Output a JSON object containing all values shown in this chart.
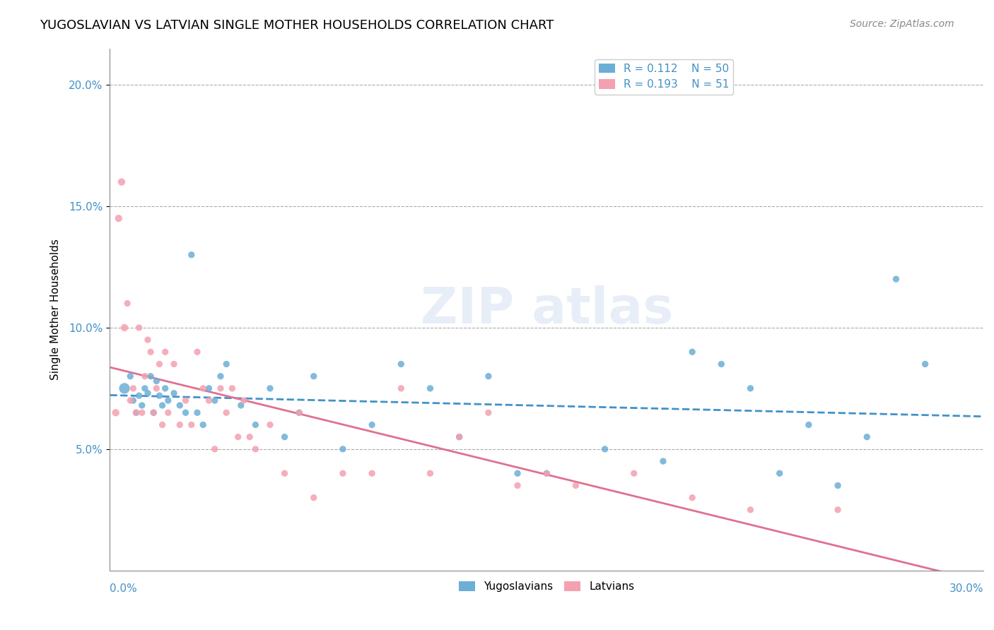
{
  "title": "YUGOSLAVIAN VS LATVIAN SINGLE MOTHER HOUSEHOLDS CORRELATION CHART",
  "source": "Source: ZipAtlas.com",
  "ylabel": "Single Mother Households",
  "ytick_labels": [
    "5.0%",
    "10.0%",
    "15.0%",
    "20.0%"
  ],
  "ytick_values": [
    0.05,
    0.1,
    0.15,
    0.2
  ],
  "xlim": [
    0.0,
    0.3
  ],
  "ylim": [
    0.0,
    0.215
  ],
  "blue_color": "#6baed6",
  "pink_color": "#f4a0b0",
  "blue_line_color": "#4292c6",
  "pink_line_color": "#e07090",
  "yugoslavian_x": [
    0.005,
    0.007,
    0.008,
    0.009,
    0.01,
    0.011,
    0.012,
    0.013,
    0.014,
    0.015,
    0.016,
    0.017,
    0.018,
    0.019,
    0.02,
    0.022,
    0.024,
    0.026,
    0.028,
    0.03,
    0.032,
    0.034,
    0.036,
    0.038,
    0.04,
    0.045,
    0.05,
    0.055,
    0.06,
    0.065,
    0.07,
    0.08,
    0.09,
    0.1,
    0.11,
    0.12,
    0.13,
    0.14,
    0.15,
    0.17,
    0.19,
    0.2,
    0.21,
    0.22,
    0.23,
    0.24,
    0.25,
    0.26,
    0.27,
    0.28
  ],
  "yugoslavian_y": [
    0.075,
    0.08,
    0.07,
    0.065,
    0.072,
    0.068,
    0.075,
    0.073,
    0.08,
    0.065,
    0.078,
    0.072,
    0.068,
    0.075,
    0.07,
    0.073,
    0.068,
    0.065,
    0.13,
    0.065,
    0.06,
    0.075,
    0.07,
    0.08,
    0.085,
    0.068,
    0.06,
    0.075,
    0.055,
    0.065,
    0.08,
    0.05,
    0.06,
    0.085,
    0.075,
    0.055,
    0.08,
    0.04,
    0.04,
    0.05,
    0.045,
    0.09,
    0.085,
    0.075,
    0.04,
    0.06,
    0.035,
    0.055,
    0.12,
    0.085
  ],
  "latvian_x": [
    0.002,
    0.003,
    0.004,
    0.005,
    0.006,
    0.007,
    0.008,
    0.009,
    0.01,
    0.011,
    0.012,
    0.013,
    0.014,
    0.015,
    0.016,
    0.017,
    0.018,
    0.019,
    0.02,
    0.022,
    0.024,
    0.026,
    0.028,
    0.03,
    0.032,
    0.034,
    0.036,
    0.038,
    0.04,
    0.042,
    0.044,
    0.046,
    0.048,
    0.05,
    0.055,
    0.06,
    0.065,
    0.07,
    0.08,
    0.09,
    0.1,
    0.11,
    0.12,
    0.13,
    0.14,
    0.15,
    0.16,
    0.18,
    0.2,
    0.22,
    0.25
  ],
  "latvian_y": [
    0.065,
    0.145,
    0.16,
    0.1,
    0.11,
    0.07,
    0.075,
    0.065,
    0.1,
    0.065,
    0.08,
    0.095,
    0.09,
    0.065,
    0.075,
    0.085,
    0.06,
    0.09,
    0.065,
    0.085,
    0.06,
    0.07,
    0.06,
    0.09,
    0.075,
    0.07,
    0.05,
    0.075,
    0.065,
    0.075,
    0.055,
    0.07,
    0.055,
    0.05,
    0.06,
    0.04,
    0.065,
    0.03,
    0.04,
    0.04,
    0.075,
    0.04,
    0.055,
    0.065,
    0.035,
    0.04,
    0.035,
    0.04,
    0.03,
    0.025,
    0.025
  ]
}
